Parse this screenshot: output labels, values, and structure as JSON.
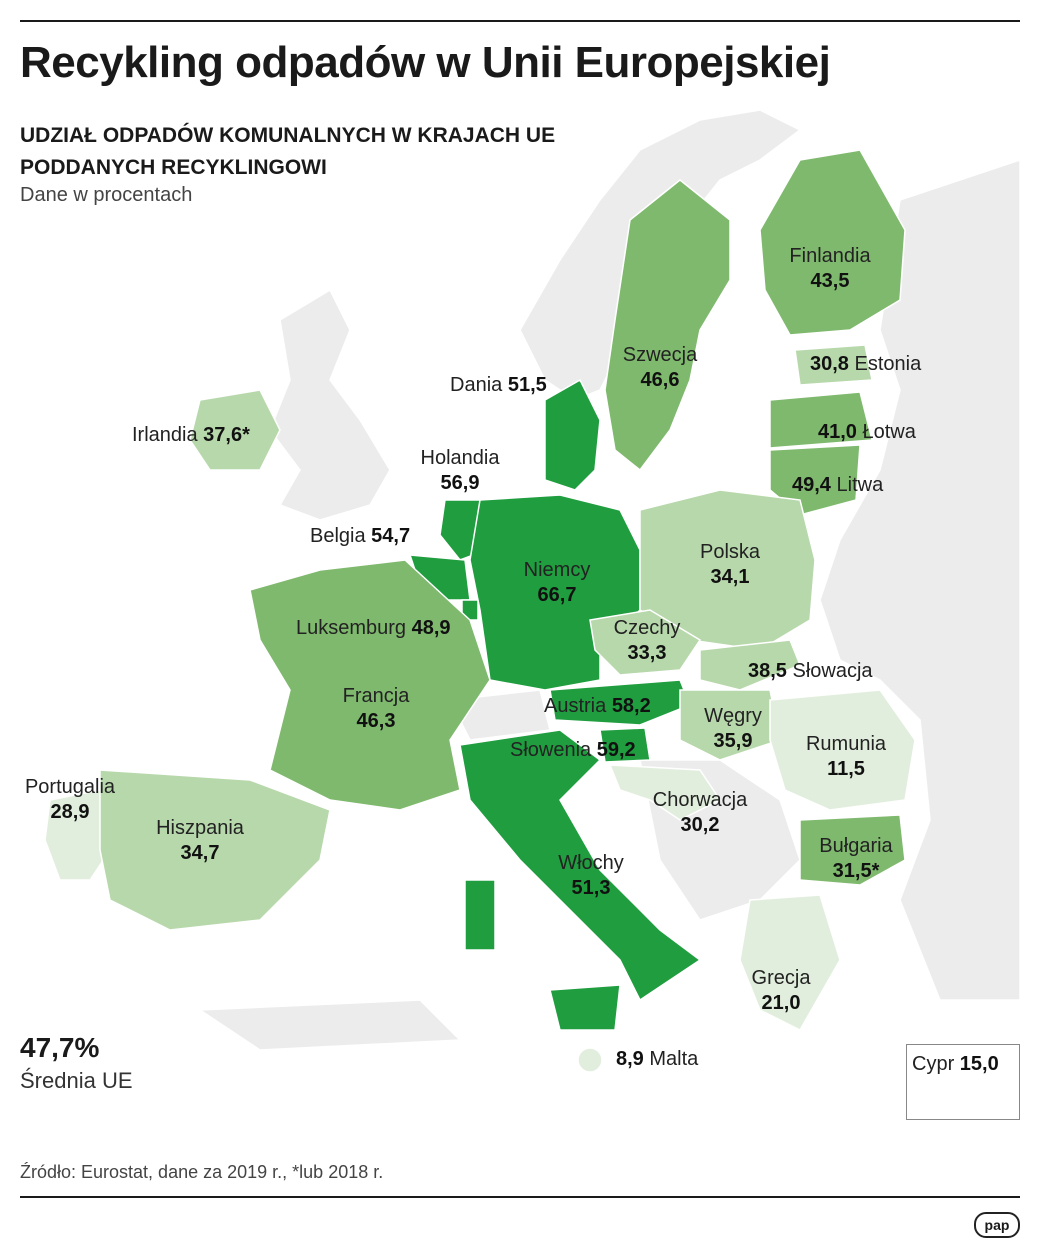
{
  "title": "Recykling odpadów w Unii Europejskiej",
  "subtitle_line1": "UDZIAŁ ODPADÓW KOMUNALNYCH W KRAJACH UE",
  "subtitle_line2": "PODDANYCH RECYKLINGOWI",
  "unit": "Dane w procentach",
  "average": {
    "value": "47,7%",
    "label": "Średnia UE"
  },
  "source": "Źródło: Eurostat, dane za 2019 r., *lub 2018 r.",
  "logo": "pap",
  "colors": {
    "level_1": "#e2eedd",
    "level_2": "#b7d8ab",
    "level_3": "#7fb96e",
    "level_4": "#1f9d3f",
    "non_eu": "#ececec",
    "border": "#ffffff"
  },
  "countries": {
    "finlandia": {
      "name": "Finlandia",
      "value": "43,5"
    },
    "szwecja": {
      "name": "Szwecja",
      "value": "46,6"
    },
    "estonia": {
      "name": "Estonia",
      "value": "30,8"
    },
    "lotwa": {
      "name": "Łotwa",
      "value": "41,0"
    },
    "litwa": {
      "name": "Litwa",
      "value": "49,4"
    },
    "dania": {
      "name": "Dania",
      "value": "51,5"
    },
    "irlandia": {
      "name": "Irlandia",
      "value": "37,6*"
    },
    "holandia": {
      "name": "Holandia",
      "value": "56,9"
    },
    "belgia": {
      "name": "Belgia",
      "value": "54,7"
    },
    "niemcy": {
      "name": "Niemcy",
      "value": "66,7"
    },
    "polska": {
      "name": "Polska",
      "value": "34,1"
    },
    "luksemburg": {
      "name": "Luksemburg",
      "value": "48,9"
    },
    "czechy": {
      "name": "Czechy",
      "value": "33,3"
    },
    "slowacja": {
      "name": "Słowacja",
      "value": "38,5"
    },
    "francja": {
      "name": "Francja",
      "value": "46,3"
    },
    "austria": {
      "name": "Austria",
      "value": "58,2"
    },
    "wegry": {
      "name": "Węgry",
      "value": "35,9"
    },
    "slowenia": {
      "name": "Słowenia",
      "value": "59,2"
    },
    "rumunia": {
      "name": "Rumunia",
      "value": "11,5"
    },
    "portugalia": {
      "name": "Portugalia",
      "value": "28,9"
    },
    "hiszpania": {
      "name": "Hiszpania",
      "value": "34,7"
    },
    "chorwacja": {
      "name": "Chorwacja",
      "value": "30,2"
    },
    "bulgaria": {
      "name": "Bułgaria",
      "value": "31,5*"
    },
    "wlochy": {
      "name": "Włochy",
      "value": "51,3"
    },
    "grecja": {
      "name": "Grecja",
      "value": "21,0"
    },
    "malta": {
      "name": "Malta",
      "value": "8,9"
    },
    "cypr": {
      "name": "Cypr",
      "value": "15,0"
    }
  }
}
